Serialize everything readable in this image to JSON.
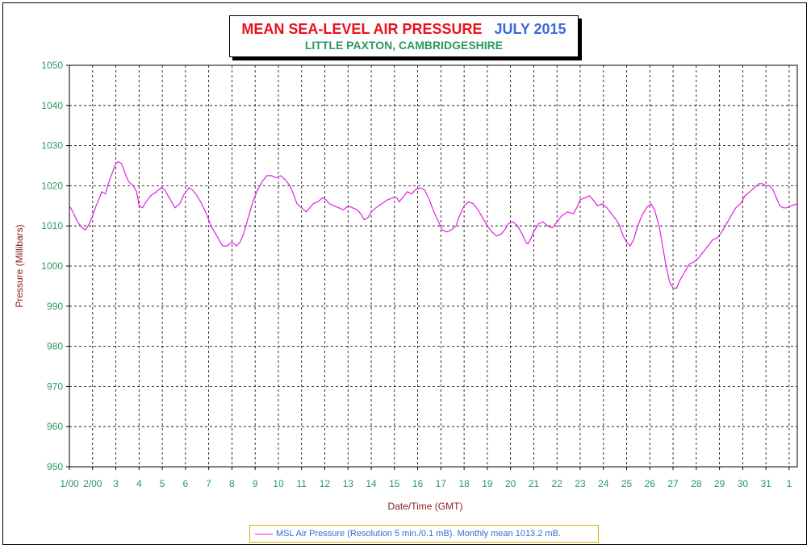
{
  "title": {
    "main": "MEAN SEA-LEVEL AIR PRESSURE",
    "period": "JULY 2015",
    "subtitle": "LITTLE PAXTON, CAMBRIDGESHIRE"
  },
  "legend": {
    "text": "MSL Air Pressure (Resolution 5 min./0.1 mB). Monthly mean 1013.2 mB."
  },
  "colors": {
    "series": "#e020e0",
    "axis_text_y": "#2c9960",
    "axis_label": "#8b1a1a",
    "grid": "#000000"
  },
  "chart_data": {
    "type": "line",
    "title": "MEAN SEA-LEVEL AIR PRESSURE  JULY 2015",
    "subtitle": "LITTLE PAXTON, CAMBRIDGESHIRE",
    "xlabel": "Date/Time (GMT)",
    "ylabel": "Pressure (Millibars)",
    "ylim": [
      950,
      1050
    ],
    "yticks": [
      "950",
      "960",
      "970",
      "980",
      "990",
      "1000",
      "1010",
      "1020",
      "1030",
      "1040",
      "1050"
    ],
    "xlim": [
      1,
      32.35
    ],
    "xticks": [
      {
        "x": 1,
        "label": "1/00"
      },
      {
        "x": 2,
        "label": "2/00"
      },
      {
        "x": 3,
        "label": "3"
      },
      {
        "x": 4,
        "label": "4"
      },
      {
        "x": 5,
        "label": "5"
      },
      {
        "x": 6,
        "label": "6"
      },
      {
        "x": 7,
        "label": "7"
      },
      {
        "x": 8,
        "label": "8"
      },
      {
        "x": 9,
        "label": "9"
      },
      {
        "x": 10,
        "label": "10"
      },
      {
        "x": 11,
        "label": "11"
      },
      {
        "x": 12,
        "label": "12"
      },
      {
        "x": 13,
        "label": "13"
      },
      {
        "x": 14,
        "label": "14"
      },
      {
        "x": 15,
        "label": "15"
      },
      {
        "x": 16,
        "label": "16"
      },
      {
        "x": 17,
        "label": "17"
      },
      {
        "x": 18,
        "label": "18"
      },
      {
        "x": 19,
        "label": "19"
      },
      {
        "x": 20,
        "label": "20"
      },
      {
        "x": 21,
        "label": "21"
      },
      {
        "x": 22,
        "label": "22"
      },
      {
        "x": 23,
        "label": "23"
      },
      {
        "x": 24,
        "label": "24"
      },
      {
        "x": 25,
        "label": "25"
      },
      {
        "x": 26,
        "label": "26"
      },
      {
        "x": 27,
        "label": "27"
      },
      {
        "x": 28,
        "label": "28"
      },
      {
        "x": 29,
        "label": "29"
      },
      {
        "x": 30,
        "label": "30"
      },
      {
        "x": 31,
        "label": "31"
      },
      {
        "x": 32,
        "label": "1"
      }
    ],
    "grid": true,
    "legend_position": "bottom",
    "series": [
      {
        "name": "MSL Air Pressure (Resolution 5 min./0.1 mB). Monthly mean 1013.2 mB.",
        "color": "#e020e0",
        "points": [
          [
            1.0,
            1015.0
          ],
          [
            1.15,
            1013.5
          ],
          [
            1.35,
            1011.0
          ],
          [
            1.55,
            1009.5
          ],
          [
            1.7,
            1009.0
          ],
          [
            1.85,
            1010.5
          ],
          [
            2.0,
            1012.5
          ],
          [
            2.15,
            1015.0
          ],
          [
            2.3,
            1017.0
          ],
          [
            2.4,
            1018.5
          ],
          [
            2.55,
            1018.0
          ],
          [
            2.65,
            1020.0
          ],
          [
            2.8,
            1022.5
          ],
          [
            3.0,
            1025.5
          ],
          [
            3.1,
            1026.0
          ],
          [
            3.25,
            1025.5
          ],
          [
            3.4,
            1023.0
          ],
          [
            3.55,
            1021.0
          ],
          [
            3.75,
            1020.0
          ],
          [
            3.9,
            1018.5
          ],
          [
            4.0,
            1015.0
          ],
          [
            4.15,
            1014.5
          ],
          [
            4.3,
            1016.0
          ],
          [
            4.5,
            1017.5
          ],
          [
            4.75,
            1018.5
          ],
          [
            4.95,
            1019.5
          ],
          [
            5.1,
            1019.0
          ],
          [
            5.25,
            1017.5
          ],
          [
            5.4,
            1016.0
          ],
          [
            5.55,
            1014.5
          ],
          [
            5.75,
            1015.5
          ],
          [
            5.95,
            1018.0
          ],
          [
            6.15,
            1019.5
          ],
          [
            6.3,
            1019.0
          ],
          [
            6.5,
            1017.5
          ],
          [
            6.7,
            1015.5
          ],
          [
            6.9,
            1013.0
          ],
          [
            7.1,
            1010.0
          ],
          [
            7.3,
            1008.0
          ],
          [
            7.5,
            1006.0
          ],
          [
            7.6,
            1005.0
          ],
          [
            7.8,
            1005.0
          ],
          [
            8.0,
            1006.0
          ],
          [
            8.1,
            1005.5
          ],
          [
            8.2,
            1005.0
          ],
          [
            8.35,
            1006.0
          ],
          [
            8.5,
            1008.0
          ],
          [
            8.7,
            1012.0
          ],
          [
            8.9,
            1016.0
          ],
          [
            9.1,
            1019.0
          ],
          [
            9.3,
            1021.0
          ],
          [
            9.5,
            1022.5
          ],
          [
            9.7,
            1022.5
          ],
          [
            9.9,
            1022.0
          ],
          [
            10.1,
            1022.5
          ],
          [
            10.3,
            1021.5
          ],
          [
            10.5,
            1020.0
          ],
          [
            10.65,
            1018.0
          ],
          [
            10.8,
            1015.5
          ],
          [
            11.0,
            1014.5
          ],
          [
            11.1,
            1014.0
          ],
          [
            11.2,
            1013.5
          ],
          [
            11.35,
            1014.5
          ],
          [
            11.5,
            1015.5
          ],
          [
            11.7,
            1016.0
          ],
          [
            11.9,
            1017.0
          ],
          [
            12.05,
            1016.5
          ],
          [
            12.2,
            1015.5
          ],
          [
            12.4,
            1015.0
          ],
          [
            12.6,
            1014.5
          ],
          [
            12.8,
            1014.0
          ],
          [
            13.0,
            1015.0
          ],
          [
            13.2,
            1014.5
          ],
          [
            13.4,
            1014.0
          ],
          [
            13.55,
            1013.0
          ],
          [
            13.7,
            1011.5
          ],
          [
            13.85,
            1012.0
          ],
          [
            14.0,
            1013.5
          ],
          [
            14.2,
            1014.5
          ],
          [
            14.45,
            1015.5
          ],
          [
            14.7,
            1016.5
          ],
          [
            14.95,
            1017.0
          ],
          [
            15.1,
            1017.0
          ],
          [
            15.2,
            1016.0
          ],
          [
            15.35,
            1017.0
          ],
          [
            15.55,
            1018.5
          ],
          [
            15.75,
            1018.0
          ],
          [
            15.9,
            1019.0
          ],
          [
            16.1,
            1019.5
          ],
          [
            16.3,
            1019.0
          ],
          [
            16.5,
            1016.5
          ],
          [
            16.7,
            1013.5
          ],
          [
            16.9,
            1011.0
          ],
          [
            17.05,
            1009.0
          ],
          [
            17.25,
            1008.5
          ],
          [
            17.45,
            1009.0
          ],
          [
            17.65,
            1010.0
          ],
          [
            17.8,
            1012.5
          ],
          [
            18.0,
            1015.0
          ],
          [
            18.2,
            1016.0
          ],
          [
            18.4,
            1015.5
          ],
          [
            18.6,
            1014.0
          ],
          [
            18.8,
            1012.0
          ],
          [
            19.0,
            1010.0
          ],
          [
            19.2,
            1008.5
          ],
          [
            19.4,
            1007.5
          ],
          [
            19.6,
            1008.0
          ],
          [
            19.75,
            1009.0
          ],
          [
            19.9,
            1010.5
          ],
          [
            20.1,
            1011.0
          ],
          [
            20.3,
            1010.0
          ],
          [
            20.5,
            1008.0
          ],
          [
            20.65,
            1006.0
          ],
          [
            20.75,
            1005.5
          ],
          [
            20.85,
            1006.5
          ],
          [
            21.0,
            1008.5
          ],
          [
            21.2,
            1010.5
          ],
          [
            21.4,
            1011.0
          ],
          [
            21.6,
            1010.0
          ],
          [
            21.8,
            1009.5
          ],
          [
            22.0,
            1011.0
          ],
          [
            22.2,
            1012.5
          ],
          [
            22.45,
            1013.5
          ],
          [
            22.7,
            1013.0
          ],
          [
            22.85,
            1014.5
          ],
          [
            23.0,
            1016.5
          ],
          [
            23.2,
            1017.0
          ],
          [
            23.4,
            1017.5
          ],
          [
            23.55,
            1016.5
          ],
          [
            23.75,
            1015.0
          ],
          [
            23.95,
            1015.5
          ],
          [
            24.15,
            1014.5
          ],
          [
            24.35,
            1013.0
          ],
          [
            24.55,
            1011.5
          ],
          [
            24.7,
            1010.0
          ],
          [
            24.85,
            1007.5
          ],
          [
            25.0,
            1006.0
          ],
          [
            25.15,
            1005.0
          ],
          [
            25.3,
            1006.5
          ],
          [
            25.45,
            1009.5
          ],
          [
            25.65,
            1012.5
          ],
          [
            25.85,
            1014.5
          ],
          [
            26.05,
            1015.5
          ],
          [
            26.2,
            1014.0
          ],
          [
            26.4,
            1010.0
          ],
          [
            26.55,
            1005.0
          ],
          [
            26.7,
            1000.0
          ],
          [
            26.85,
            996.0
          ],
          [
            27.0,
            994.5
          ],
          [
            27.15,
            994.5
          ],
          [
            27.3,
            996.5
          ],
          [
            27.5,
            998.5
          ],
          [
            27.7,
            1000.5
          ],
          [
            27.9,
            1001.0
          ],
          [
            28.1,
            1002.0
          ],
          [
            28.3,
            1003.5
          ],
          [
            28.5,
            1005.0
          ],
          [
            28.7,
            1006.5
          ],
          [
            28.9,
            1007.0
          ],
          [
            29.1,
            1008.5
          ],
          [
            29.3,
            1010.5
          ],
          [
            29.5,
            1012.5
          ],
          [
            29.7,
            1014.5
          ],
          [
            29.9,
            1015.5
          ],
          [
            30.1,
            1017.5
          ],
          [
            30.3,
            1018.5
          ],
          [
            30.5,
            1019.5
          ],
          [
            30.7,
            1020.5
          ],
          [
            30.85,
            1020.5
          ],
          [
            31.0,
            1020.0
          ],
          [
            31.15,
            1020.0
          ],
          [
            31.3,
            1019.0
          ],
          [
            31.45,
            1017.0
          ],
          [
            31.6,
            1015.0
          ],
          [
            31.75,
            1014.5
          ],
          [
            31.9,
            1014.5
          ],
          [
            32.1,
            1015.0
          ],
          [
            32.35,
            1015.5
          ]
        ]
      }
    ]
  }
}
